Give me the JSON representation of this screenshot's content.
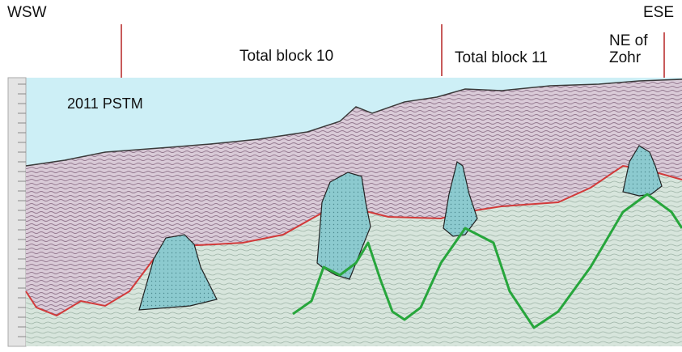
{
  "labels": {
    "left": "WSW",
    "right": "ESE",
    "block10": "Total block 10",
    "block11": "Total block 11",
    "ne": "NE of\nZohr",
    "survey": "2011 PSTM"
  },
  "colors": {
    "water": "#cdeff6",
    "sediment": "#d9e6df",
    "pink_band": "#d9c6d6",
    "red_horizon": "#d23a3a",
    "green_horizon": "#27a63c",
    "carbonate_fill": "#8cc9cf",
    "boundary": "#c85a5a"
  }
}
